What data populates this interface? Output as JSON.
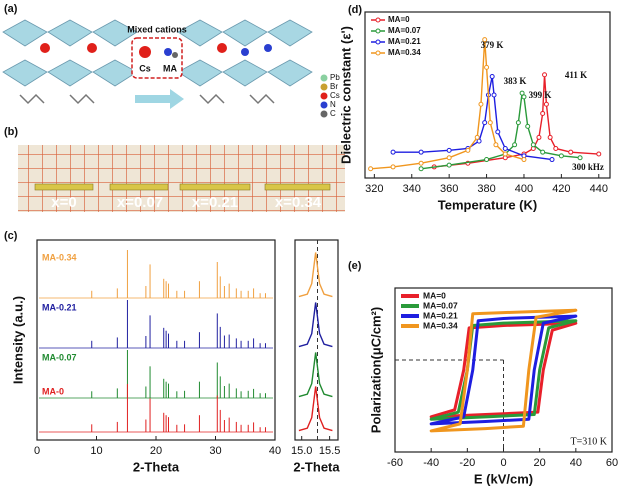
{
  "panels": {
    "a": {
      "label": "(a)",
      "box_title": "Mixed cations",
      "cations": [
        "Cs",
        "MA"
      ],
      "legend": [
        "Pb",
        "Br",
        "Cs",
        "N",
        "C"
      ]
    },
    "b": {
      "label": "(b)",
      "samples": [
        "x=0",
        "x=0.07",
        "x=0.21",
        "x=0.34"
      ]
    },
    "c": {
      "label": "(c)"
    },
    "d": {
      "label": "(d)"
    },
    "e": {
      "label": "(e)"
    }
  },
  "chart_data": [
    {
      "type": "spectra",
      "xlabel": "2-Theta",
      "ylabel": "Intensity (a.u.)",
      "x": [
        9.2,
        13.5,
        15.2,
        18.3,
        19.0,
        21.3,
        21.7,
        22.1,
        23.5,
        24.8,
        27.3,
        30.3,
        30.8,
        31.5,
        32.3,
        33.5,
        34.3,
        35.5,
        36.4,
        37.5,
        38.4
      ],
      "xlim": [
        0,
        40
      ],
      "xticks": [
        0,
        10,
        20,
        30,
        40
      ],
      "ylim": [
        0,
        100
      ],
      "series": [
        {
          "name": "MA-0.34",
          "color": "#f0a040",
          "values": [
            15,
            20,
            100,
            25,
            70,
            40,
            35,
            30,
            15,
            15,
            35,
            75,
            45,
            25,
            30,
            20,
            15,
            15,
            20,
            10,
            10
          ]
        },
        {
          "name": "MA-0.21",
          "color": "#2020a0",
          "values": [
            15,
            22,
            100,
            25,
            68,
            42,
            36,
            30,
            15,
            15,
            33,
            72,
            44,
            26,
            28,
            20,
            15,
            15,
            20,
            10,
            10
          ]
        },
        {
          "name": "MA-0.07",
          "color": "#208a30",
          "values": [
            14,
            20,
            100,
            24,
            66,
            40,
            34,
            30,
            14,
            15,
            34,
            74,
            45,
            25,
            30,
            20,
            14,
            15,
            19,
            10,
            10
          ]
        },
        {
          "name": "MA-0",
          "color": "#e02020",
          "values": [
            16,
            21,
            100,
            26,
            70,
            40,
            35,
            31,
            15,
            16,
            35,
            76,
            46,
            25,
            30,
            21,
            15,
            15,
            20,
            10,
            10
          ]
        }
      ]
    },
    {
      "type": "line",
      "xlabel": "2-Theta",
      "x": [
        14.95,
        15.1,
        15.18,
        15.25,
        15.32,
        15.4,
        15.55
      ],
      "xlim": [
        14.88,
        15.65
      ],
      "xticks": [
        {
          "value": 15.0,
          "label": "15.0"
        },
        {
          "value": 15.5,
          "label": "15.5"
        }
      ],
      "ylim": [
        0,
        100
      ],
      "series": [
        {
          "name": "MA-0.34",
          "color": "#f0a040",
          "values": [
            3,
            8,
            30,
            95,
            30,
            8,
            3
          ]
        },
        {
          "name": "MA-0.21",
          "color": "#2020a0",
          "values": [
            3,
            8,
            30,
            95,
            30,
            8,
            3
          ]
        },
        {
          "name": "MA-0.07",
          "color": "#208a30",
          "values": [
            3,
            8,
            30,
            95,
            30,
            8,
            3
          ]
        },
        {
          "name": "MA-0",
          "color": "#e02020",
          "values": [
            3,
            8,
            30,
            95,
            30,
            8,
            3
          ]
        }
      ]
    },
    {
      "type": "line",
      "xlabel": "Temperature (K)",
      "ylabel": "Dielectric constant (ε')",
      "xlim": [
        315,
        446
      ],
      "xticks": [
        320,
        340,
        360,
        380,
        400,
        420,
        440
      ],
      "ylim": [
        0,
        90
      ],
      "annotations": [
        "379 K",
        "383 K",
        "399 K",
        "411 K",
        "300 kHz"
      ],
      "series": [
        {
          "name": "MA=0",
          "color": "#e8202a",
          "x": [
            352,
            370,
            390,
            400,
            405,
            408,
            410,
            411,
            412,
            414,
            417,
            425,
            440
          ],
          "values": [
            6,
            8,
            11,
            13,
            16,
            22,
            35,
            56,
            40,
            22,
            16,
            14,
            13
          ]
        },
        {
          "name": "MA=0.07",
          "color": "#2a9a3a",
          "x": [
            345,
            360,
            380,
            390,
            395,
            397,
            399,
            400,
            402,
            405,
            410,
            420,
            430
          ],
          "values": [
            5,
            7,
            10,
            13,
            18,
            30,
            46,
            44,
            28,
            18,
            14,
            12,
            11
          ]
        },
        {
          "name": "MA=0.21",
          "color": "#1e1ee0",
          "x": [
            330,
            345,
            360,
            370,
            376,
            379,
            381,
            383,
            384,
            386,
            390,
            400,
            415
          ],
          "values": [
            14,
            14,
            15,
            16,
            20,
            30,
            45,
            55,
            45,
            25,
            16,
            12,
            10
          ]
        },
        {
          "name": "MA=0.34",
          "color": "#f0961e",
          "x": [
            318,
            330,
            345,
            360,
            370,
            375,
            377,
            379,
            380,
            382,
            385,
            390,
            400
          ],
          "values": [
            5,
            6,
            8,
            11,
            15,
            22,
            40,
            75,
            60,
            30,
            18,
            13,
            10
          ]
        }
      ]
    },
    {
      "type": "loop",
      "xlabel": "E (kV/cm)",
      "ylabel": "Polarization(μC/cm²)",
      "annotation": "T=310 K",
      "xlim": [
        -60,
        60
      ],
      "xticks": [
        -60,
        -40,
        -20,
        0,
        20,
        40,
        60
      ],
      "ylim": [
        -7,
        7
      ],
      "series": [
        {
          "name": "MA=0",
          "color": "#e8202a",
          "x": [
            -40,
            -10,
            19,
            22,
            27,
            40,
            20,
            0,
            -19,
            -22,
            -27,
            -40
          ],
          "values": [
            -4,
            -3.8,
            -3.6,
            0,
            3.4,
            4,
            3.9,
            3.8,
            3.6,
            0,
            -3.4,
            -4
          ]
        },
        {
          "name": "MA=0.07",
          "color": "#2a9a3a",
          "x": [
            -40,
            -10,
            17,
            20,
            25,
            40,
            20,
            0,
            -17,
            -20,
            -25,
            -40
          ],
          "values": [
            -4.2,
            -4,
            -3.8,
            0,
            3.6,
            4.2,
            4.1,
            4,
            3.8,
            0,
            -3.6,
            -4.2
          ]
        },
        {
          "name": "MA=0.21",
          "color": "#1e1ee0",
          "x": [
            -40,
            -10,
            14,
            17,
            22,
            40,
            20,
            0,
            -14,
            -17,
            -22,
            -40
          ],
          "values": [
            -4.6,
            -4.4,
            -4.2,
            0,
            4,
            4.6,
            4.5,
            4.4,
            4.2,
            0,
            -4,
            -4.6
          ]
        },
        {
          "name": "MA=0.34",
          "color": "#f0961e",
          "x": [
            -40,
            -10,
            11,
            14,
            18,
            40,
            20,
            0,
            -17,
            -20,
            -24,
            -40
          ],
          "values": [
            -5.2,
            -5,
            -4.8,
            0,
            4.5,
            5.1,
            5,
            4.9,
            4.8,
            0,
            -4.6,
            -5.2
          ]
        }
      ]
    }
  ]
}
